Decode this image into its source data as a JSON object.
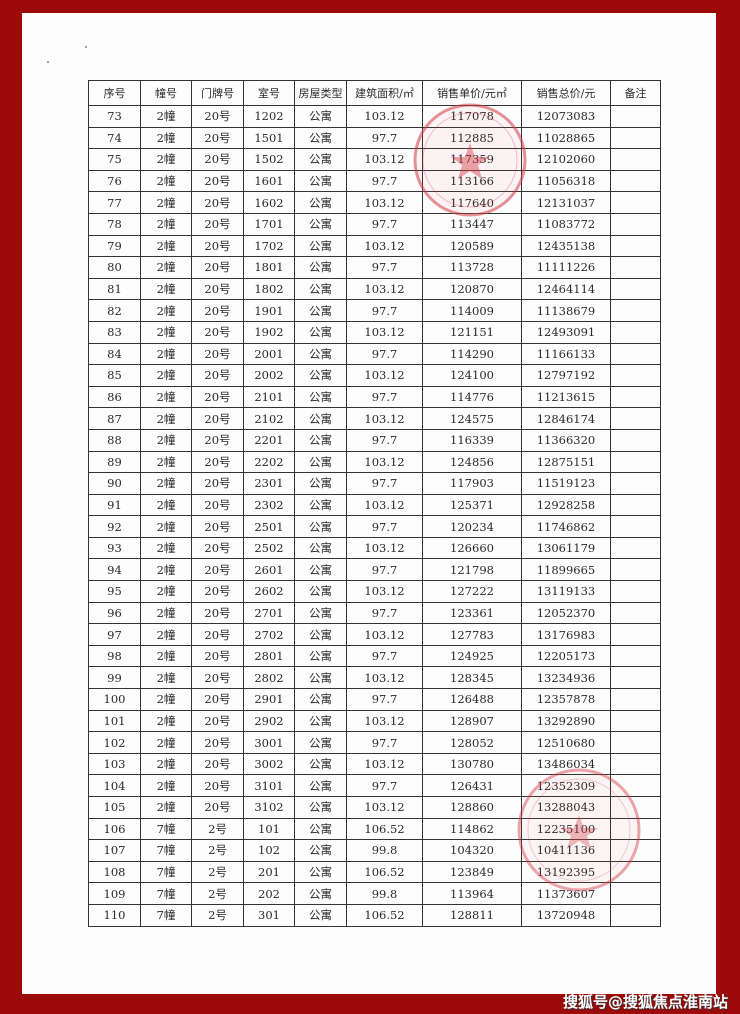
{
  "table": {
    "headers": [
      "序号",
      "幢号",
      "门牌号",
      "室号",
      "房屋类型",
      "建筑面积/㎡",
      "销售单价/元㎡",
      "销售总价/元",
      "备注"
    ],
    "rows": [
      [
        "73",
        "2幢",
        "20号",
        "1202",
        "公寓",
        "103.12",
        "117078",
        "12073083",
        ""
      ],
      [
        "74",
        "2幢",
        "20号",
        "1501",
        "公寓",
        "97.7",
        "112885",
        "11028865",
        ""
      ],
      [
        "75",
        "2幢",
        "20号",
        "1502",
        "公寓",
        "103.12",
        "117359",
        "12102060",
        ""
      ],
      [
        "76",
        "2幢",
        "20号",
        "1601",
        "公寓",
        "97.7",
        "113166",
        "11056318",
        ""
      ],
      [
        "77",
        "2幢",
        "20号",
        "1602",
        "公寓",
        "103.12",
        "117640",
        "12131037",
        ""
      ],
      [
        "78",
        "2幢",
        "20号",
        "1701",
        "公寓",
        "97.7",
        "113447",
        "11083772",
        ""
      ],
      [
        "79",
        "2幢",
        "20号",
        "1702",
        "公寓",
        "103.12",
        "120589",
        "12435138",
        ""
      ],
      [
        "80",
        "2幢",
        "20号",
        "1801",
        "公寓",
        "97.7",
        "113728",
        "11111226",
        ""
      ],
      [
        "81",
        "2幢",
        "20号",
        "1802",
        "公寓",
        "103.12",
        "120870",
        "12464114",
        ""
      ],
      [
        "82",
        "2幢",
        "20号",
        "1901",
        "公寓",
        "97.7",
        "114009",
        "11138679",
        ""
      ],
      [
        "83",
        "2幢",
        "20号",
        "1902",
        "公寓",
        "103.12",
        "121151",
        "12493091",
        ""
      ],
      [
        "84",
        "2幢",
        "20号",
        "2001",
        "公寓",
        "97.7",
        "114290",
        "11166133",
        ""
      ],
      [
        "85",
        "2幢",
        "20号",
        "2002",
        "公寓",
        "103.12",
        "124100",
        "12797192",
        ""
      ],
      [
        "86",
        "2幢",
        "20号",
        "2101",
        "公寓",
        "97.7",
        "114776",
        "11213615",
        ""
      ],
      [
        "87",
        "2幢",
        "20号",
        "2102",
        "公寓",
        "103.12",
        "124575",
        "12846174",
        ""
      ],
      [
        "88",
        "2幢",
        "20号",
        "2201",
        "公寓",
        "97.7",
        "116339",
        "11366320",
        ""
      ],
      [
        "89",
        "2幢",
        "20号",
        "2202",
        "公寓",
        "103.12",
        "124856",
        "12875151",
        ""
      ],
      [
        "90",
        "2幢",
        "20号",
        "2301",
        "公寓",
        "97.7",
        "117903",
        "11519123",
        ""
      ],
      [
        "91",
        "2幢",
        "20号",
        "2302",
        "公寓",
        "103.12",
        "125371",
        "12928258",
        ""
      ],
      [
        "92",
        "2幢",
        "20号",
        "2501",
        "公寓",
        "97.7",
        "120234",
        "11746862",
        ""
      ],
      [
        "93",
        "2幢",
        "20号",
        "2502",
        "公寓",
        "103.12",
        "126660",
        "13061179",
        ""
      ],
      [
        "94",
        "2幢",
        "20号",
        "2601",
        "公寓",
        "97.7",
        "121798",
        "11899665",
        ""
      ],
      [
        "95",
        "2幢",
        "20号",
        "2602",
        "公寓",
        "103.12",
        "127222",
        "13119133",
        ""
      ],
      [
        "96",
        "2幢",
        "20号",
        "2701",
        "公寓",
        "97.7",
        "123361",
        "12052370",
        ""
      ],
      [
        "97",
        "2幢",
        "20号",
        "2702",
        "公寓",
        "103.12",
        "127783",
        "13176983",
        ""
      ],
      [
        "98",
        "2幢",
        "20号",
        "2801",
        "公寓",
        "97.7",
        "124925",
        "12205173",
        ""
      ],
      [
        "99",
        "2幢",
        "20号",
        "2802",
        "公寓",
        "103.12",
        "128345",
        "13234936",
        ""
      ],
      [
        "100",
        "2幢",
        "20号",
        "2901",
        "公寓",
        "97.7",
        "126488",
        "12357878",
        ""
      ],
      [
        "101",
        "2幢",
        "20号",
        "2902",
        "公寓",
        "103.12",
        "128907",
        "13292890",
        ""
      ],
      [
        "102",
        "2幢",
        "20号",
        "3001",
        "公寓",
        "97.7",
        "128052",
        "12510680",
        ""
      ],
      [
        "103",
        "2幢",
        "20号",
        "3002",
        "公寓",
        "103.12",
        "130780",
        "13486034",
        ""
      ],
      [
        "104",
        "2幢",
        "20号",
        "3101",
        "公寓",
        "97.7",
        "126431",
        "12352309",
        ""
      ],
      [
        "105",
        "2幢",
        "20号",
        "3102",
        "公寓",
        "103.12",
        "128860",
        "13288043",
        ""
      ],
      [
        "106",
        "7幢",
        "2号",
        "101",
        "公寓",
        "106.52",
        "114862",
        "12235100",
        ""
      ],
      [
        "107",
        "7幢",
        "2号",
        "102",
        "公寓",
        "99.8",
        "104320",
        "10411136",
        ""
      ],
      [
        "108",
        "7幢",
        "2号",
        "201",
        "公寓",
        "106.52",
        "123849",
        "13192395",
        ""
      ],
      [
        "109",
        "7幢",
        "2号",
        "202",
        "公寓",
        "99.8",
        "113964",
        "11373607",
        ""
      ],
      [
        "110",
        "7幢",
        "2号",
        "301",
        "公寓",
        "106.52",
        "128811",
        "13720948",
        ""
      ]
    ]
  },
  "watermark": "搜狐号@搜狐焦点淮南站",
  "colors": {
    "frame": "#9c0a0a",
    "stamp": "#d9434a"
  }
}
